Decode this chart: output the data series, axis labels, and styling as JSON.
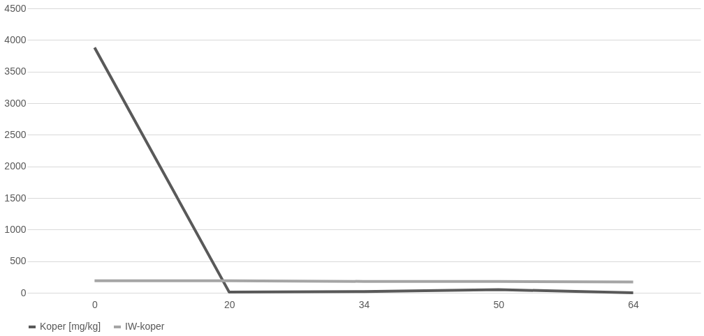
{
  "chart_data": {
    "type": "line",
    "categories": [
      "0",
      "20",
      "34",
      "50",
      "64"
    ],
    "series": [
      {
        "name": "Koper [mg/kg]",
        "color": "#595959",
        "values": [
          3880,
          10,
          20,
          50,
          0
        ]
      },
      {
        "name": "IW-koper",
        "color": "#a5a5a5",
        "values": [
          190,
          190,
          180,
          180,
          170
        ]
      }
    ],
    "ylim": [
      0,
      4500
    ],
    "yticks": [
      0,
      500,
      1000,
      1500,
      2000,
      2500,
      3000,
      3500,
      4000,
      4500
    ],
    "grid": "y",
    "legend": "bottom",
    "marker": "none",
    "line_style": "solid"
  }
}
